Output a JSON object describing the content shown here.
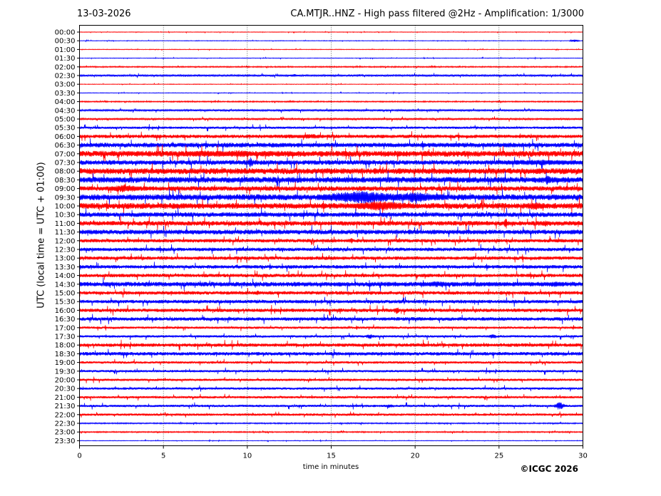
{
  "header": {
    "date": "13-03-2026",
    "title": "CA.MTJR..HNZ - High pass filtered @2Hz - Amplification: 1/3000"
  },
  "footer": {
    "copyright": "©ICGC 2026"
  },
  "chart_data": {
    "type": "line",
    "xlabel": "time in minutes",
    "ylabel": "UTC (local time = UTC + 01:00)",
    "xlim": [
      0,
      30
    ],
    "xticks": [
      0,
      5,
      10,
      15,
      20,
      25,
      30
    ],
    "grid": "vertical dotted lines at x ticks",
    "colors": {
      "even_rows": "#ff0000",
      "odd_rows": "#0000ff"
    },
    "rows": [
      "00:00",
      "00:30",
      "01:00",
      "01:30",
      "02:00",
      "02:30",
      "03:00",
      "03:30",
      "04:00",
      "04:30",
      "05:00",
      "05:30",
      "06:00",
      "06:30",
      "07:00",
      "07:30",
      "08:00",
      "08:30",
      "09:00",
      "09:30",
      "10:00",
      "10:30",
      "11:00",
      "11:30",
      "12:00",
      "12:30",
      "13:00",
      "13:30",
      "14:00",
      "14:30",
      "15:00",
      "15:30",
      "16:00",
      "16:30",
      "17:00",
      "17:30",
      "18:00",
      "18:30",
      "19:00",
      "19:30",
      "20:00",
      "20:30",
      "21:00",
      "21:30",
      "22:00",
      "22:30",
      "23:00",
      "23:30"
    ],
    "noise_level": [
      0.05,
      0.05,
      0.05,
      0.05,
      0.1,
      0.15,
      0.05,
      0.05,
      0.1,
      0.15,
      0.15,
      0.2,
      0.3,
      0.4,
      0.5,
      0.4,
      0.5,
      0.5,
      0.4,
      0.5,
      0.5,
      0.4,
      0.4,
      0.4,
      0.3,
      0.3,
      0.3,
      0.3,
      0.3,
      0.4,
      0.3,
      0.3,
      0.3,
      0.3,
      0.2,
      0.2,
      0.3,
      0.3,
      0.2,
      0.2,
      0.2,
      0.2,
      0.2,
      0.2,
      0.2,
      0.1,
      0.1,
      0.05
    ],
    "events": [
      {
        "row": "00:30",
        "minute": 29.5,
        "amplitude": 0.3,
        "duration": 0.3
      },
      {
        "row": "02:30",
        "minute": 12.8,
        "amplitude": 0.4,
        "duration": 0.3
      },
      {
        "row": "02:30",
        "minute": 14.9,
        "amplitude": 0.3,
        "duration": 0.2
      },
      {
        "row": "06:00",
        "minute": 12.5,
        "amplitude": 0.5,
        "duration": 0.8
      },
      {
        "row": "06:00",
        "minute": 13.8,
        "amplitude": 0.6,
        "duration": 1.2
      },
      {
        "row": "06:00",
        "minute": 18.1,
        "amplitude": 0.6,
        "duration": 0.2
      },
      {
        "row": "06:30",
        "minute": 22.3,
        "amplitude": 0.6,
        "duration": 0.2
      },
      {
        "row": "07:00",
        "minute": 3.0,
        "amplitude": 0.6,
        "duration": 2.0
      },
      {
        "row": "07:00",
        "minute": 7.5,
        "amplitude": 0.8,
        "duration": 2.5
      },
      {
        "row": "07:00",
        "minute": 9.5,
        "amplitude": 1.0,
        "duration": 1.0
      },
      {
        "row": "07:00",
        "minute": 13.0,
        "amplitude": 0.5,
        "duration": 1.5
      },
      {
        "row": "07:30",
        "minute": 10.2,
        "amplitude": 1.2,
        "duration": 0.2
      },
      {
        "row": "07:30",
        "minute": 27.5,
        "amplitude": 0.7,
        "duration": 4.0
      },
      {
        "row": "08:00",
        "minute": 1.0,
        "amplitude": 0.5,
        "duration": 2.0
      },
      {
        "row": "08:30",
        "minute": 27.9,
        "amplitude": 1.3,
        "duration": 0.2
      },
      {
        "row": "08:30",
        "minute": 29.0,
        "amplitude": 0.6,
        "duration": 1.0
      },
      {
        "row": "09:00",
        "minute": 2.7,
        "amplitude": 1.0,
        "duration": 1.0
      },
      {
        "row": "09:30",
        "minute": 16.7,
        "amplitude": 1.6,
        "duration": 2.5
      },
      {
        "row": "09:30",
        "minute": 20.0,
        "amplitude": 1.3,
        "duration": 2.0
      },
      {
        "row": "09:30",
        "minute": 11.5,
        "amplitude": 0.5,
        "duration": 0.6
      },
      {
        "row": "09:30",
        "minute": 25.5,
        "amplitude": 0.4,
        "duration": 0.6
      },
      {
        "row": "10:00",
        "minute": 18.0,
        "amplitude": 1.2,
        "duration": 2.0
      },
      {
        "row": "10:00",
        "minute": 27.2,
        "amplitude": 1.0,
        "duration": 0.8
      },
      {
        "row": "10:30",
        "minute": 10.5,
        "amplitude": 0.6,
        "duration": 1.0
      },
      {
        "row": "11:00",
        "minute": 25.4,
        "amplitude": 1.6,
        "duration": 0.1
      },
      {
        "row": "11:00",
        "minute": 27.8,
        "amplitude": 0.8,
        "duration": 0.3
      },
      {
        "row": "12:00",
        "minute": 16.2,
        "amplitude": 0.7,
        "duration": 0.2
      },
      {
        "row": "14:30",
        "minute": 24.0,
        "amplitude": 0.5,
        "duration": 7.5
      },
      {
        "row": "14:30",
        "minute": 21.3,
        "amplitude": 0.8,
        "duration": 0.8
      },
      {
        "row": "14:30",
        "minute": 28.3,
        "amplitude": 0.7,
        "duration": 0.6
      },
      {
        "row": "15:00",
        "minute": 10.6,
        "amplitude": 0.6,
        "duration": 0.3
      },
      {
        "row": "16:00",
        "minute": 18.9,
        "amplitude": 0.9,
        "duration": 0.2
      },
      {
        "row": "16:00",
        "minute": 15.5,
        "amplitude": 0.5,
        "duration": 0.3
      },
      {
        "row": "17:30",
        "minute": 17.3,
        "amplitude": 0.6,
        "duration": 0.3
      },
      {
        "row": "17:30",
        "minute": 24.6,
        "amplitude": 0.7,
        "duration": 0.2
      },
      {
        "row": "18:00",
        "minute": 20.5,
        "amplitude": 0.5,
        "duration": 0.3
      },
      {
        "row": "21:30",
        "minute": 28.6,
        "amplitude": 1.0,
        "duration": 0.3
      },
      {
        "row": "21:30",
        "minute": 18.5,
        "amplitude": 0.5,
        "duration": 0.3
      }
    ]
  }
}
